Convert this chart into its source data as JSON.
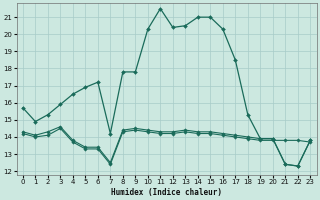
{
  "xlabel": "Humidex (Indice chaleur)",
  "background_color": "#cce8e0",
  "grid_color": "#a8ccc8",
  "line_color": "#1a6b5a",
  "xlim": [
    -0.5,
    23.5
  ],
  "ylim": [
    11.8,
    21.8
  ],
  "yticks": [
    12,
    13,
    14,
    15,
    16,
    17,
    18,
    19,
    20,
    21
  ],
  "xticks": [
    0,
    1,
    2,
    3,
    4,
    5,
    6,
    7,
    8,
    9,
    10,
    11,
    12,
    13,
    14,
    15,
    16,
    17,
    18,
    19,
    20,
    21,
    22,
    23
  ],
  "line1_x": [
    0,
    1,
    2,
    3,
    4,
    5,
    6,
    7,
    8,
    9,
    10,
    11,
    12,
    13,
    14,
    15,
    16,
    17,
    18,
    19,
    20,
    21,
    22,
    23
  ],
  "line1_y": [
    15.7,
    14.9,
    15.3,
    15.9,
    16.5,
    16.9,
    17.2,
    14.2,
    17.8,
    17.8,
    20.3,
    21.5,
    20.4,
    20.5,
    21.0,
    21.0,
    20.3,
    18.5,
    15.3,
    13.9,
    13.9,
    12.4,
    12.3,
    13.8
  ],
  "line2_x": [
    0,
    1,
    2,
    3,
    4,
    5,
    6,
    7,
    8,
    9,
    10,
    11,
    12,
    13,
    14,
    15,
    16,
    17,
    18,
    19,
    20,
    21,
    22,
    23
  ],
  "line2_y": [
    14.3,
    14.1,
    14.3,
    14.6,
    13.8,
    13.4,
    13.4,
    12.5,
    14.4,
    14.5,
    14.4,
    14.3,
    14.3,
    14.4,
    14.3,
    14.3,
    14.2,
    14.1,
    14.0,
    13.9,
    13.9,
    12.4,
    12.3,
    13.8
  ],
  "line3_x": [
    0,
    1,
    2,
    3,
    4,
    5,
    6,
    7,
    8,
    9,
    10,
    11,
    12,
    13,
    14,
    15,
    16,
    17,
    18,
    19,
    20,
    21,
    22,
    23
  ],
  "line3_y": [
    14.2,
    14.0,
    14.1,
    14.5,
    13.7,
    13.3,
    13.3,
    12.4,
    14.3,
    14.4,
    14.3,
    14.2,
    14.2,
    14.3,
    14.2,
    14.2,
    14.1,
    14.0,
    13.9,
    13.8,
    13.8,
    13.8,
    13.8,
    13.7
  ]
}
